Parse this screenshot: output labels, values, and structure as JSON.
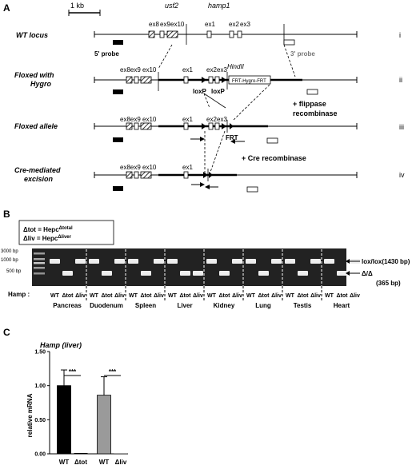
{
  "panelA": {
    "letter": "A",
    "scalebar": "1 kb",
    "gene1": "usf2",
    "gene2": "hamp1",
    "rows": [
      {
        "name": "WT locus",
        "roman": "i"
      },
      {
        "name": "Floxed with",
        "name2": "Hygro",
        "roman": "ii"
      },
      {
        "name": "Floxed allele",
        "roman": "iii"
      },
      {
        "name": "Cre-mediated",
        "name2": "excision",
        "roman": "iv"
      }
    ],
    "exons": {
      "ex8": "ex8",
      "ex9": "ex9",
      "ex10": "ex10",
      "ex1": "ex1",
      "ex2": "ex2",
      "ex3": "ex3",
      "ex8ex9ex10": "ex8ex9 ex10"
    },
    "probe5": "5' probe",
    "probe3": "3' probe",
    "hindII": "HindII",
    "hygroCassette": "FRT-Hygro-FRT",
    "loxP": "loxP",
    "frt": "FRT",
    "flippase": "+ flippase",
    "recombinase": "recombinase",
    "cre": "+ Cre recombinase"
  },
  "panelB": {
    "letter": "B",
    "legend1": "Δtot = Hepc",
    "legend1sup": "Δtotal",
    "legend2": "Δliv = Hepc",
    "legend2sup": "Δliver",
    "ladder": [
      "3000 bp",
      "1000 bp",
      "500 bp"
    ],
    "bandLox": "lox/lox(1430 bp)",
    "bandDelta": "Δ/Δ",
    "bandDeltaSize": "(365 bp)",
    "hampLabel": "Hamp :",
    "genotypes": [
      "WT",
      "Δtot",
      "Δliv"
    ],
    "tissues": [
      "Pancreas",
      "Duodenum",
      "Spleen",
      "Liver",
      "Kidney",
      "Lung",
      "Testis",
      "Heart"
    ]
  },
  "panelC": {
    "letter": "C",
    "title": "Hamp (liver)",
    "ylabel": "relative mRNA",
    "sig1": "***",
    "sig2": "***"
  },
  "chart_data": {
    "type": "bar",
    "title": "Hamp (liver)",
    "xlabel": "",
    "ylabel": "relative mRNA",
    "ylim": [
      0,
      1.5
    ],
    "yticks": [
      "0.00",
      "0.50",
      "1.00",
      "1.50"
    ],
    "categories": [
      "WT",
      "Δtot",
      "WT",
      "Δliv"
    ],
    "values": [
      1.0,
      0.0,
      0.86,
      0.0
    ],
    "errors": [
      0.23,
      0.0,
      0.27,
      0.0
    ],
    "colors": [
      "#000000",
      "#000000",
      "#9a9a9a",
      "#9a9a9a"
    ]
  }
}
